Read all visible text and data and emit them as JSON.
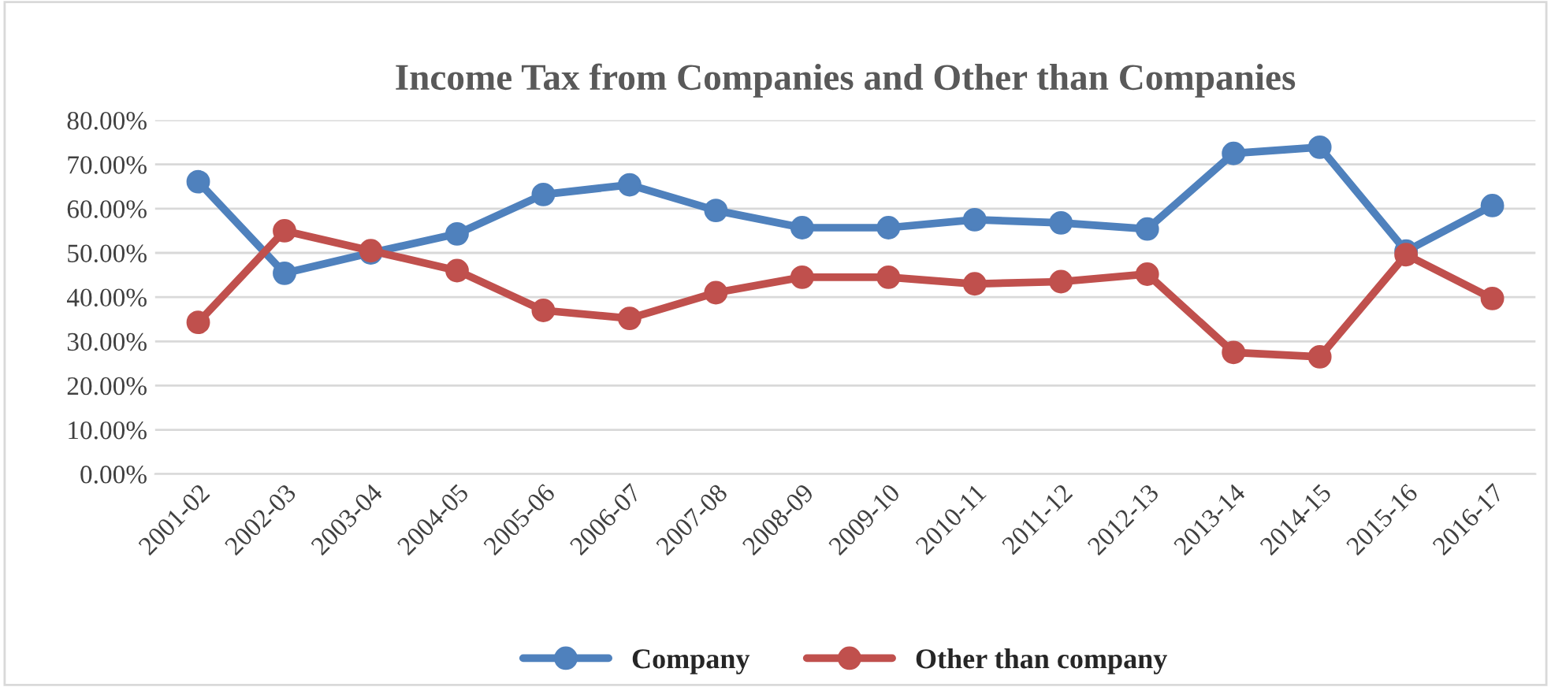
{
  "chart_data": {
    "type": "line",
    "title": "Income Tax from Companies and Other than Companies",
    "categories": [
      "2001-02",
      "2002-03",
      "2003-04",
      "2004-05",
      "2005-06",
      "2006-07",
      "2007-08",
      "2008-09",
      "2009-10",
      "2010-11",
      "2011-12",
      "2012-13",
      "2013-14",
      "2014-15",
      "2015-16",
      "2016-17"
    ],
    "series": [
      {
        "name": "Company",
        "color": "#4f81bd",
        "values": [
          66.1,
          45.4,
          50.0,
          54.3,
          63.2,
          65.4,
          59.6,
          55.7,
          55.7,
          57.5,
          56.8,
          55.4,
          72.5,
          73.9,
          50.4,
          60.7
        ]
      },
      {
        "name": "Other than company",
        "color": "#c0504d",
        "values": [
          34.3,
          55.0,
          50.5,
          46.0,
          37.0,
          35.2,
          41.0,
          44.5,
          44.5,
          43.0,
          43.5,
          45.2,
          27.5,
          26.5,
          49.6,
          39.7
        ]
      }
    ],
    "ylim": [
      0,
      80
    ],
    "yticks": [
      {
        "value": 0,
        "label": "0.00%"
      },
      {
        "value": 10,
        "label": "10.00%"
      },
      {
        "value": 20,
        "label": "20.00%"
      },
      {
        "value": 30,
        "label": "30.00%"
      },
      {
        "value": 40,
        "label": "40.00%"
      },
      {
        "value": 50,
        "label": "50.00%"
      },
      {
        "value": 60,
        "label": "60.00%"
      },
      {
        "value": 70,
        "label": "70.00%"
      },
      {
        "value": 80,
        "label": "80.00%"
      }
    ],
    "grid": "y",
    "legend": "bottom",
    "marker": "circle",
    "line_style": "solid"
  }
}
